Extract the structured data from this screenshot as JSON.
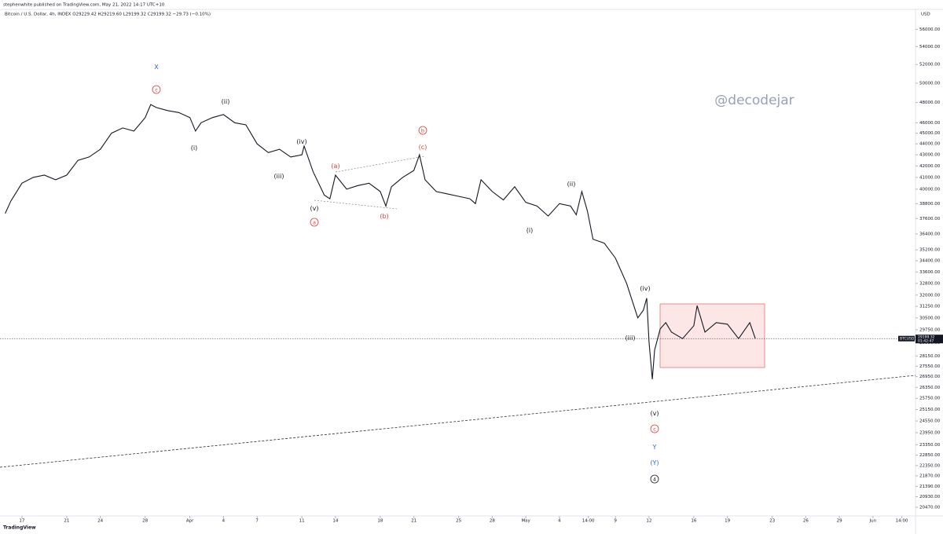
{
  "chart_data": {
    "type": "line",
    "header": "stephenwhite published on TradingView.com, May 21, 2022 14:17 UTC+10",
    "legend_text": "Bitcoin / U.S. Dollar, 4h, INDEX  O29229.42  H29219.60  L29199.32  C29199.32  −29.73 (−0.10%)",
    "watermark": "@decodejar",
    "footer": "TradingView",
    "y_unit": "USD",
    "log_scale": true,
    "x": [
      -1.5,
      -1,
      0,
      1,
      2,
      3,
      4,
      5,
      6,
      7,
      8,
      9,
      10,
      11,
      11.5,
      12,
      13,
      14,
      15,
      15.5,
      16,
      17,
      18,
      19,
      20,
      21,
      22,
      23,
      24,
      25,
      25.2,
      26,
      27,
      27.5,
      28,
      29,
      30,
      31,
      32,
      32.5,
      33,
      34,
      35,
      35.5,
      36,
      37,
      38,
      39,
      40,
      40.5,
      41,
      42,
      43,
      44,
      45,
      46,
      47,
      48,
      49,
      49.5,
      50,
      50.5,
      51,
      52,
      53,
      54,
      55,
      55.5,
      55.8,
      56,
      56.3,
      56.5,
      57,
      57.5,
      58,
      59,
      60,
      60.3,
      61,
      62,
      63,
      64,
      65,
      65.5
    ],
    "series": [
      {
        "name": "BTCUSD",
        "color": "#131722",
        "values": [
          38000,
          39000,
          40500,
          41000,
          41200,
          40800,
          41200,
          42500,
          42800,
          43500,
          45000,
          45500,
          45200,
          46500,
          47800,
          47500,
          47200,
          47000,
          46500,
          45200,
          46000,
          46500,
          46800,
          46000,
          45800,
          44000,
          43200,
          43500,
          42800,
          43000,
          43800,
          41500,
          39500,
          39200,
          41200,
          40000,
          40300,
          40500,
          39800,
          38600,
          40200,
          41000,
          41600,
          43000,
          40800,
          39800,
          39600,
          39400,
          39200,
          38800,
          40800,
          39800,
          39100,
          40200,
          38900,
          38600,
          37800,
          38800,
          38600,
          37900,
          39800,
          38200,
          36000,
          35700,
          34600,
          32800,
          30500,
          31000,
          31800,
          29000,
          26800,
          28500,
          29800,
          30200,
          29600,
          29200,
          30000,
          31300,
          29600,
          30200,
          30100,
          29200,
          30200,
          29199.32
        ]
      }
    ],
    "last_price": {
      "name": "BTCUSD",
      "value": 29199.32,
      "label": "29199.32",
      "countdown": "01:42:47"
    },
    "xlim": [
      -1.96,
      79.8
    ],
    "ylim": [
      20100,
      58400
    ],
    "xticks": [
      {
        "value": 0,
        "label": "17"
      },
      {
        "value": 4,
        "label": "21"
      },
      {
        "value": 7,
        "label": "24"
      },
      {
        "value": 11,
        "label": "28"
      },
      {
        "value": 15,
        "label": "Apr"
      },
      {
        "value": 18,
        "label": "4"
      },
      {
        "value": 21,
        "label": "7"
      },
      {
        "value": 25,
        "label": "11"
      },
      {
        "value": 28,
        "label": "14"
      },
      {
        "value": 32,
        "label": "18"
      },
      {
        "value": 35,
        "label": "21"
      },
      {
        "value": 39,
        "label": "25"
      },
      {
        "value": 42,
        "label": "28"
      },
      {
        "value": 45,
        "label": "May"
      },
      {
        "value": 48,
        "label": "4"
      },
      {
        "value": 50.58,
        "label": "14:00"
      },
      {
        "value": 53,
        "label": "9"
      },
      {
        "value": 56,
        "label": "12"
      },
      {
        "value": 60,
        "label": "16"
      },
      {
        "value": 63,
        "label": "19"
      },
      {
        "value": 67,
        "label": "23"
      },
      {
        "value": 70,
        "label": "26"
      },
      {
        "value": 73,
        "label": "29"
      },
      {
        "value": 76,
        "label": "Jun"
      },
      {
        "value": 78.58,
        "label": "14:00"
      }
    ],
    "yticks": [
      {
        "value": 56000,
        "label": "56000.00"
      },
      {
        "value": 54000,
        "label": "54000.00"
      },
      {
        "value": 52000,
        "label": "52000.00"
      },
      {
        "value": 50000,
        "label": "50000.00"
      },
      {
        "value": 48000,
        "label": "48000.00"
      },
      {
        "value": 46000,
        "label": "46000.00"
      },
      {
        "value": 45000,
        "label": "45000.00"
      },
      {
        "value": 44000,
        "label": "44000.00"
      },
      {
        "value": 43000,
        "label": "43000.00"
      },
      {
        "value": 42000,
        "label": "42000.00"
      },
      {
        "value": 41000,
        "label": "41000.00"
      },
      {
        "value": 40000,
        "label": "40000.00"
      },
      {
        "value": 38800,
        "label": "38800.00"
      },
      {
        "value": 37600,
        "label": "37600.00"
      },
      {
        "value": 36400,
        "label": "36400.00"
      },
      {
        "value": 35200,
        "label": "35200.00"
      },
      {
        "value": 34400,
        "label": "34400.00"
      },
      {
        "value": 33600,
        "label": "33600.00"
      },
      {
        "value": 32800,
        "label": "32800.00"
      },
      {
        "value": 32000,
        "label": "32000.00"
      },
      {
        "value": 31250,
        "label": "31250.00"
      },
      {
        "value": 30500,
        "label": "30500.00"
      },
      {
        "value": 29750,
        "label": "29750.00"
      },
      {
        "value": 28950,
        "label": "28950.00"
      },
      {
        "value": 28150,
        "label": "28150.00"
      },
      {
        "value": 27550,
        "label": "27550.00"
      },
      {
        "value": 26950,
        "label": "26950.00"
      },
      {
        "value": 26350,
        "label": "26350.00"
      },
      {
        "value": 25750,
        "label": "25750.00"
      },
      {
        "value": 25150,
        "label": "25150.00"
      },
      {
        "value": 24550,
        "label": "24550.00"
      },
      {
        "value": 23950,
        "label": "23950.00"
      },
      {
        "value": 23350,
        "label": "23350.00"
      },
      {
        "value": 22850,
        "label": "22850.00"
      },
      {
        "value": 22350,
        "label": "22350.00"
      },
      {
        "value": 21870,
        "label": "21870.00"
      },
      {
        "value": 21390,
        "label": "21390.00"
      },
      {
        "value": 20930,
        "label": "20930.00"
      },
      {
        "value": 20470,
        "label": "20470.00"
      }
    ],
    "annotations": [
      {
        "text": "X",
        "color": "#2962ff",
        "circled": false
      },
      {
        "text": "c",
        "color": "#e53935",
        "circled": true
      },
      {
        "text": "(ii)",
        "color": "#131722",
        "circled": false
      },
      {
        "text": "(i)",
        "color": "#131722",
        "circled": false
      },
      {
        "text": "(iv)",
        "color": "#131722",
        "circled": false
      },
      {
        "text": "(iii)",
        "color": "#131722",
        "circled": false
      },
      {
        "text": "(a)",
        "color": "#e53935",
        "circled": false
      },
      {
        "text": "(v)",
        "color": "#131722",
        "circled": false
      },
      {
        "text": "a",
        "color": "#e53935",
        "circled": true
      },
      {
        "text": "(b)",
        "color": "#e53935",
        "circled": false
      },
      {
        "text": "b",
        "color": "#e53935",
        "circled": true
      },
      {
        "text": "(c)",
        "color": "#e53935",
        "circled": false
      },
      {
        "text": "(i)",
        "color": "#131722",
        "circled": false
      },
      {
        "text": "(ii)",
        "color": "#131722",
        "circled": false
      },
      {
        "text": "(iv)",
        "color": "#131722",
        "circled": false
      },
      {
        "text": "(iii)",
        "color": "#131722",
        "circled": false
      },
      {
        "text": "(v)",
        "color": "#131722",
        "circled": false
      },
      {
        "text": "c",
        "color": "#e53935",
        "circled": true
      },
      {
        "text": "Y",
        "color": "#2962ff",
        "circled": false
      },
      {
        "text": "(Y)",
        "color": "#2962ff",
        "circled": false
      },
      {
        "text": "4",
        "color": "#131722",
        "circled": true
      }
    ]
  }
}
